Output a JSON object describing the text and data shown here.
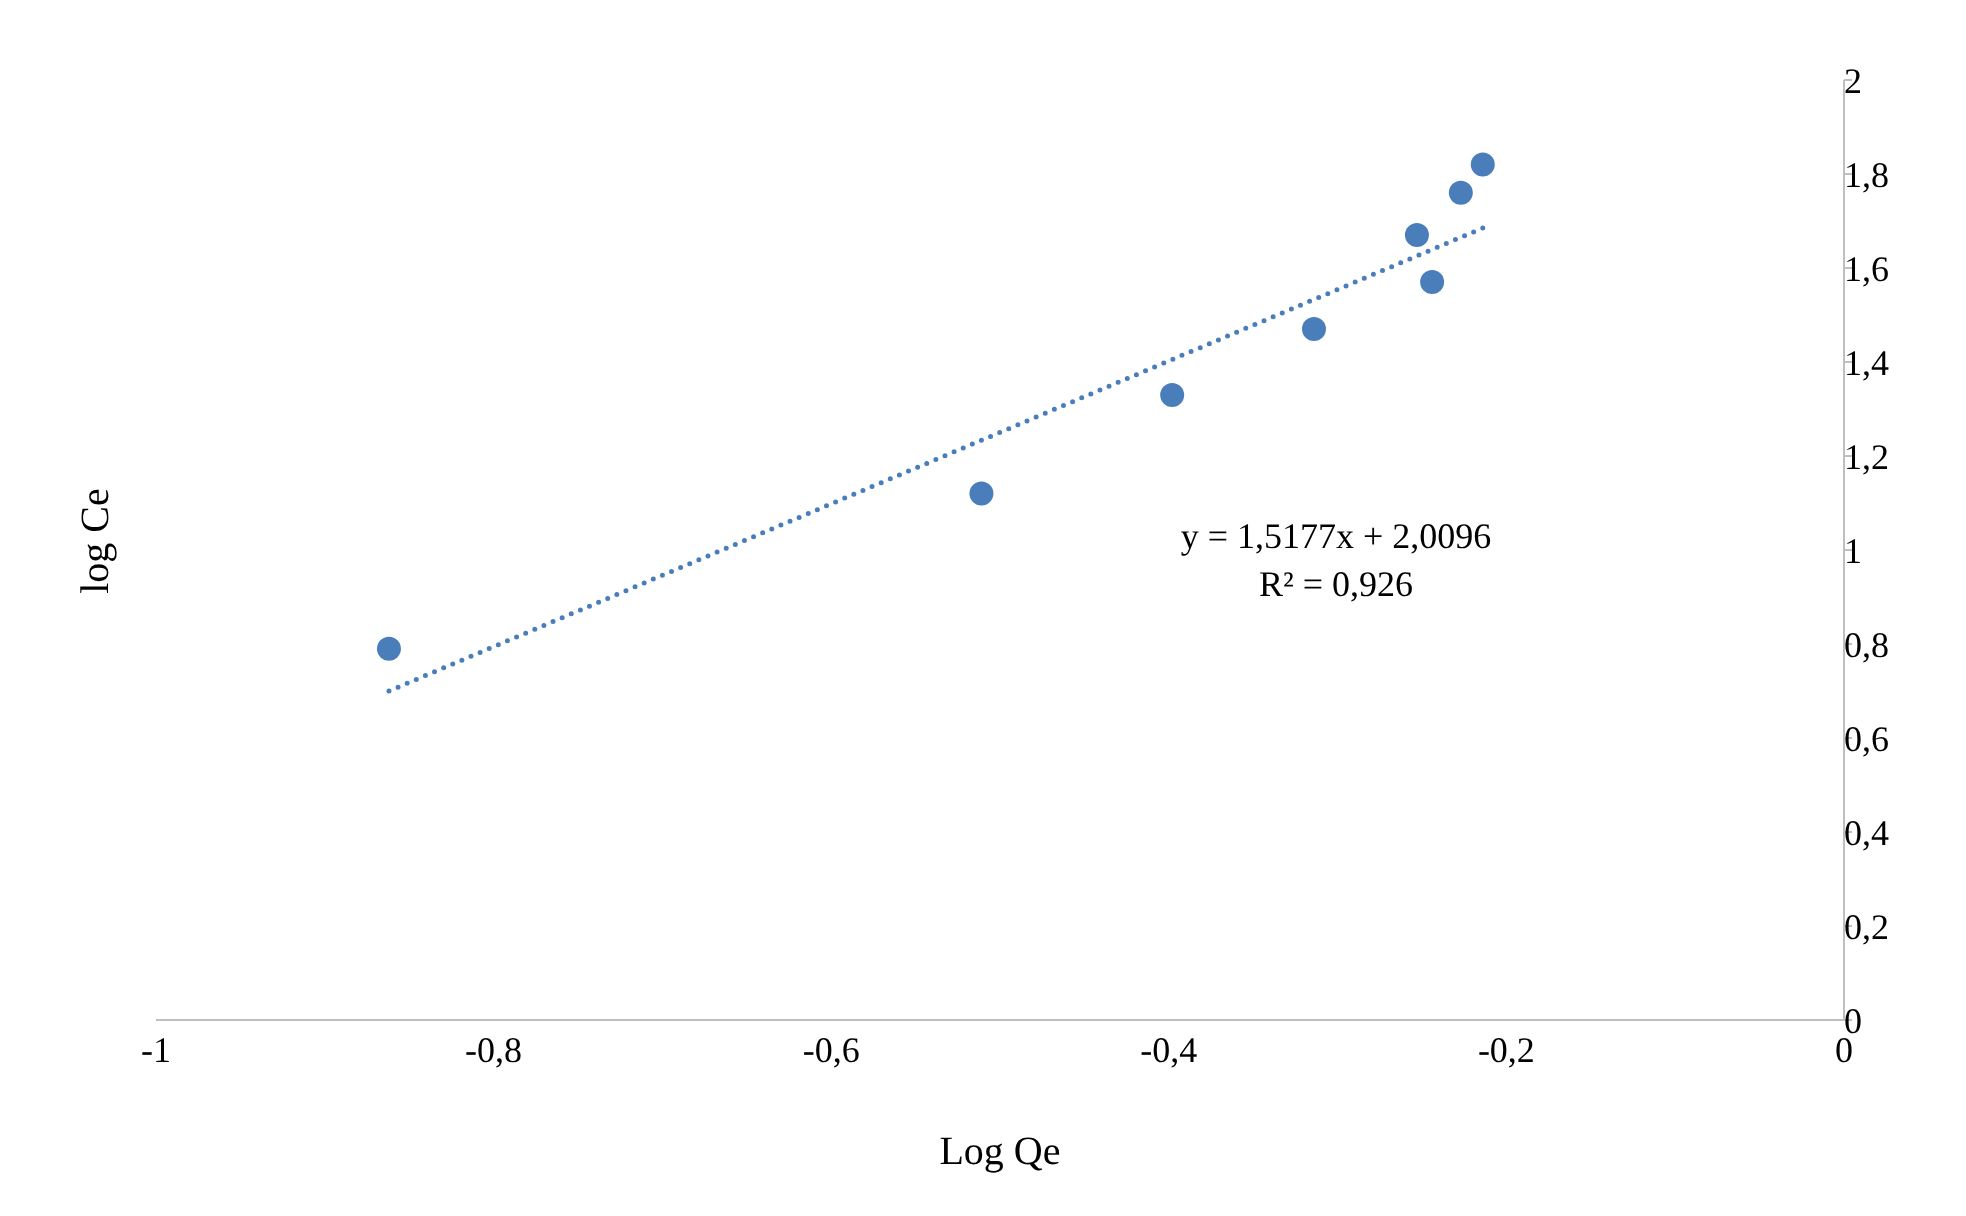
{
  "chart_data": {
    "type": "scatter",
    "xlabel": "Log Qe",
    "ylabel": "log Ce",
    "annotations": [
      "y = 1,5177x + 2,0096",
      "R² = 0,926"
    ],
    "xlim": [
      -1,
      0
    ],
    "xticks": [
      {
        "value": -1,
        "label": "-1"
      },
      {
        "value": -0.8,
        "label": "-0,8"
      },
      {
        "value": -0.6,
        "label": "-0,6"
      },
      {
        "value": -0.4,
        "label": "-0,4"
      },
      {
        "value": -0.2,
        "label": "-0,2"
      },
      {
        "value": 0,
        "label": "0"
      }
    ],
    "ylim": [
      0,
      2
    ],
    "yticks": [
      {
        "value": 0,
        "label": "0"
      },
      {
        "value": 0.2,
        "label": "0,2"
      },
      {
        "value": 0.4,
        "label": "0,4"
      },
      {
        "value": 0.6,
        "label": "0,6"
      },
      {
        "value": 0.8,
        "label": "0,8"
      },
      {
        "value": 1,
        "label": "1"
      },
      {
        "value": 1.2,
        "label": "1,2"
      },
      {
        "value": 1.4,
        "label": "1,4"
      },
      {
        "value": 1.6,
        "label": "1,6"
      },
      {
        "value": 1.8,
        "label": "1,8"
      },
      {
        "value": 2,
        "label": "2"
      }
    ],
    "grid": false,
    "legend": false,
    "marker": "circle",
    "series": [
      {
        "color": "#4a7ebb",
        "x": [
          -0.862,
          -0.511,
          -0.398,
          -0.314,
          -0.253,
          -0.244,
          -0.227,
          -0.214
        ],
        "values": [
          0.79,
          1.12,
          1.33,
          1.47,
          1.67,
          1.57,
          1.76,
          1.82
        ]
      },
      {
        "type": "line",
        "color": "#4a7ebb",
        "line_style": "dotted",
        "marker": "none",
        "x": [
          -0.862,
          -0.214
        ],
        "values": [
          0.7,
          1.685
        ]
      }
    ]
  }
}
